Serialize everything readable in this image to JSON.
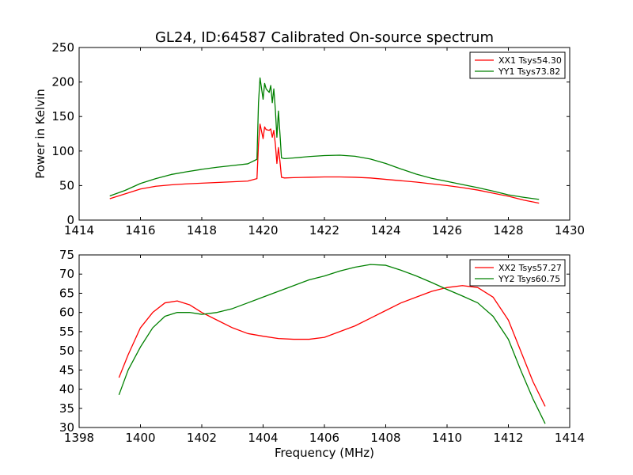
{
  "chart_data": [
    {
      "type": "line",
      "title": "GL24, ID:64587 Calibrated On-source spectrum",
      "xlabel": "",
      "ylabel": "Power in Kelvin",
      "xlim": [
        1414,
        1430
      ],
      "ylim": [
        0,
        250
      ],
      "xticks": [
        1414,
        1416,
        1418,
        1420,
        1422,
        1424,
        1426,
        1428,
        1430
      ],
      "yticks": [
        0,
        50,
        100,
        150,
        200,
        250
      ],
      "grid": false,
      "legend_position": "top-right",
      "series": [
        {
          "name": "XX1 Tsys54.30",
          "color": "#ff0000",
          "x": [
            1415,
            1415.5,
            1416,
            1416.5,
            1417,
            1417.5,
            1418,
            1418.5,
            1419,
            1419.5,
            1419.8,
            1419.85,
            1419.9,
            1420.0,
            1420.05,
            1420.1,
            1420.2,
            1420.25,
            1420.3,
            1420.35,
            1420.4,
            1420.45,
            1420.5,
            1420.55,
            1420.6,
            1420.7,
            1421,
            1421.5,
            1422,
            1422.5,
            1423,
            1423.5,
            1424,
            1424.5,
            1425,
            1425.5,
            1426,
            1426.5,
            1427,
            1427.5,
            1428,
            1428.5,
            1429
          ],
          "y": [
            31,
            38,
            45,
            49,
            51,
            52.5,
            53.5,
            54.5,
            55.5,
            56.5,
            60,
            110,
            139,
            118,
            135,
            131,
            130,
            132,
            120,
            130,
            110,
            82,
            105,
            85,
            62,
            61,
            61.5,
            62,
            62.5,
            62.5,
            62,
            61,
            59,
            57,
            55,
            52.5,
            50,
            47,
            43.5,
            39,
            34.5,
            29,
            24.5
          ]
        },
        {
          "name": "YY1 Tsys73.82",
          "color": "#008000",
          "x": [
            1415,
            1415.5,
            1416,
            1416.5,
            1417,
            1417.5,
            1418,
            1418.5,
            1419,
            1419.5,
            1419.8,
            1419.85,
            1419.9,
            1420.0,
            1420.05,
            1420.1,
            1420.2,
            1420.25,
            1420.3,
            1420.35,
            1420.4,
            1420.45,
            1420.5,
            1420.55,
            1420.6,
            1420.7,
            1421,
            1421.5,
            1422,
            1422.5,
            1423,
            1423.5,
            1424,
            1424.5,
            1425,
            1425.5,
            1426,
            1426.5,
            1427,
            1427.5,
            1428,
            1428.5,
            1429
          ],
          "y": [
            35,
            43,
            53,
            60,
            66,
            70,
            73.5,
            76.5,
            79,
            81.5,
            88,
            170,
            206,
            175,
            198,
            190,
            185,
            195,
            170,
            190,
            160,
            120,
            158,
            125,
            90,
            89,
            90,
            92,
            93.5,
            94,
            92.5,
            88.5,
            82,
            74,
            66.5,
            60.5,
            56,
            51.5,
            47,
            42,
            36.5,
            33,
            30
          ]
        }
      ]
    },
    {
      "type": "line",
      "title": "",
      "xlabel": "Frequency (MHz)",
      "ylabel": "",
      "xlim": [
        1398,
        1414
      ],
      "ylim": [
        30,
        75
      ],
      "xticks": [
        1398,
        1400,
        1402,
        1404,
        1406,
        1408,
        1410,
        1412,
        1414
      ],
      "yticks": [
        30,
        35,
        40,
        45,
        50,
        55,
        60,
        65,
        70,
        75
      ],
      "grid": false,
      "legend_position": "top-right",
      "series": [
        {
          "name": "XX2 Tsys57.27",
          "color": "#ff0000",
          "x": [
            1399.3,
            1399.6,
            1400,
            1400.4,
            1400.8,
            1401.2,
            1401.6,
            1402,
            1402.5,
            1403,
            1403.5,
            1404,
            1404.5,
            1405,
            1405.5,
            1406,
            1406.5,
            1407,
            1407.5,
            1408,
            1408.5,
            1409,
            1409.5,
            1410,
            1410.5,
            1411,
            1411.5,
            1412,
            1412.4,
            1412.8,
            1413.2
          ],
          "y": [
            43,
            49,
            56,
            60,
            62.5,
            63,
            62,
            60,
            58,
            56,
            54.5,
            53.8,
            53.2,
            53,
            53,
            53.5,
            55,
            56.5,
            58.5,
            60.5,
            62.5,
            64,
            65.5,
            66.5,
            67,
            66.5,
            64,
            58,
            50,
            42,
            35.5
          ]
        },
        {
          "name": "YY2 Tsys60.75",
          "color": "#008000",
          "x": [
            1399.3,
            1399.6,
            1400,
            1400.4,
            1400.8,
            1401.2,
            1401.6,
            1402,
            1402.5,
            1403,
            1403.5,
            1404,
            1404.5,
            1405,
            1405.5,
            1406,
            1406.5,
            1407,
            1407.5,
            1408,
            1408.5,
            1409,
            1409.5,
            1410,
            1410.5,
            1411,
            1411.5,
            1412,
            1412.4,
            1412.8,
            1413.2
          ],
          "y": [
            38.5,
            45,
            51,
            56,
            59,
            60,
            60,
            59.5,
            60,
            61,
            62.5,
            64,
            65.5,
            67,
            68.5,
            69.5,
            70.8,
            71.8,
            72.5,
            72.3,
            71,
            69.5,
            67.8,
            66,
            64.3,
            62.5,
            59,
            53,
            45,
            37.5,
            31
          ]
        }
      ]
    }
  ]
}
